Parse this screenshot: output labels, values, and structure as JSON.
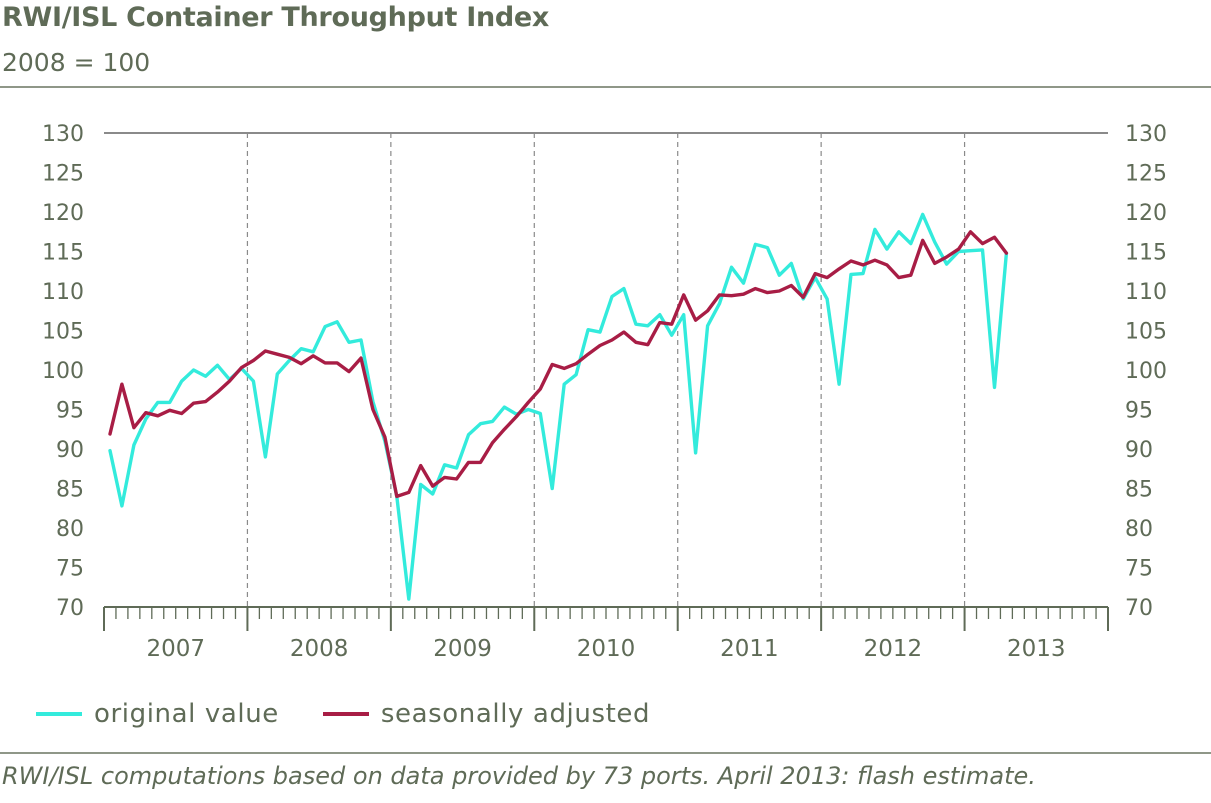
{
  "header": {
    "title": "RWI/ISL Container Throughput Index",
    "subtitle": "2008 = 100"
  },
  "footnote": "RWI/ISL computations based on data provided by 73 ports. April 2013: flash estimate.",
  "colors": {
    "original": "#33ebdc",
    "adjusted": "#a81d45",
    "axis": "#5f6b57",
    "grid": "#8a8a8a"
  },
  "chart_data": {
    "type": "line",
    "title": "RWI/ISL Container Throughput Index",
    "subtitle": "2008 = 100",
    "ylim": [
      70,
      130
    ],
    "yticks": [
      70,
      75,
      80,
      85,
      90,
      95,
      100,
      105,
      110,
      115,
      120,
      125,
      130
    ],
    "years": [
      "2007",
      "2008",
      "2009",
      "2010",
      "2011",
      "2012",
      "2013"
    ],
    "x_period": "monthly, January 2007 to April 2013",
    "grid": "top gridline solid, year dividers dashed",
    "legend_position": "bottom-left",
    "series": [
      {
        "name": "original value",
        "color": "#33ebdc",
        "values": [
          89.8,
          82.8,
          90.5,
          93.8,
          95.9,
          95.9,
          98.6,
          100,
          99.2,
          100.6,
          98.8,
          100.2,
          98.6,
          89.0,
          99.5,
          101.2,
          102.7,
          102.3,
          105.5,
          106.1,
          103.5,
          103.8,
          96.0,
          91.0,
          84.0,
          71.0,
          85.5,
          84.3,
          88.0,
          87.6,
          91.8,
          93.2,
          93.5,
          95.3,
          94.4,
          95.0,
          94.5,
          85.0,
          98.2,
          99.4,
          105.1,
          104.8,
          109.3,
          110.3,
          105.8,
          105.6,
          107.0,
          104.4,
          107.0,
          89.5,
          105.6,
          108.4,
          113.0,
          111.0,
          115.9,
          115.5,
          112.0,
          113.5,
          109.0,
          111.7,
          109.0,
          98.2,
          112.1,
          112.2,
          117.8,
          115.3,
          117.5,
          116.0,
          119.7,
          116.2,
          113.4,
          115.0,
          115.1,
          115.2,
          97.8,
          114.8
        ]
      },
      {
        "name": "seasonally adjusted",
        "color": "#a81d45",
        "values": [
          91.9,
          98.2,
          92.7,
          94.6,
          94.2,
          94.9,
          94.5,
          95.8,
          96.0,
          97.2,
          98.6,
          100.3,
          101.2,
          102.4,
          102.0,
          101.6,
          100.8,
          101.8,
          100.9,
          100.9,
          99.8,
          101.5,
          95.0,
          91.5,
          84.0,
          84.5,
          87.9,
          85.3,
          86.4,
          86.2,
          88.3,
          88.3,
          90.8,
          92.5,
          94.1,
          95.9,
          97.6,
          100.7,
          100.2,
          100.8,
          102.0,
          103.1,
          103.8,
          104.8,
          103.5,
          103.2,
          106.0,
          105.8,
          109.5,
          106.3,
          107.5,
          109.5,
          109.4,
          109.6,
          110.3,
          109.8,
          110.0,
          110.7,
          109.2,
          112.2,
          111.7,
          112.8,
          113.8,
          113.3,
          113.9,
          113.3,
          111.7,
          112.0,
          116.4,
          113.5,
          114.3,
          115.3,
          117.5,
          116.0,
          116.8,
          114.8
        ]
      }
    ]
  }
}
